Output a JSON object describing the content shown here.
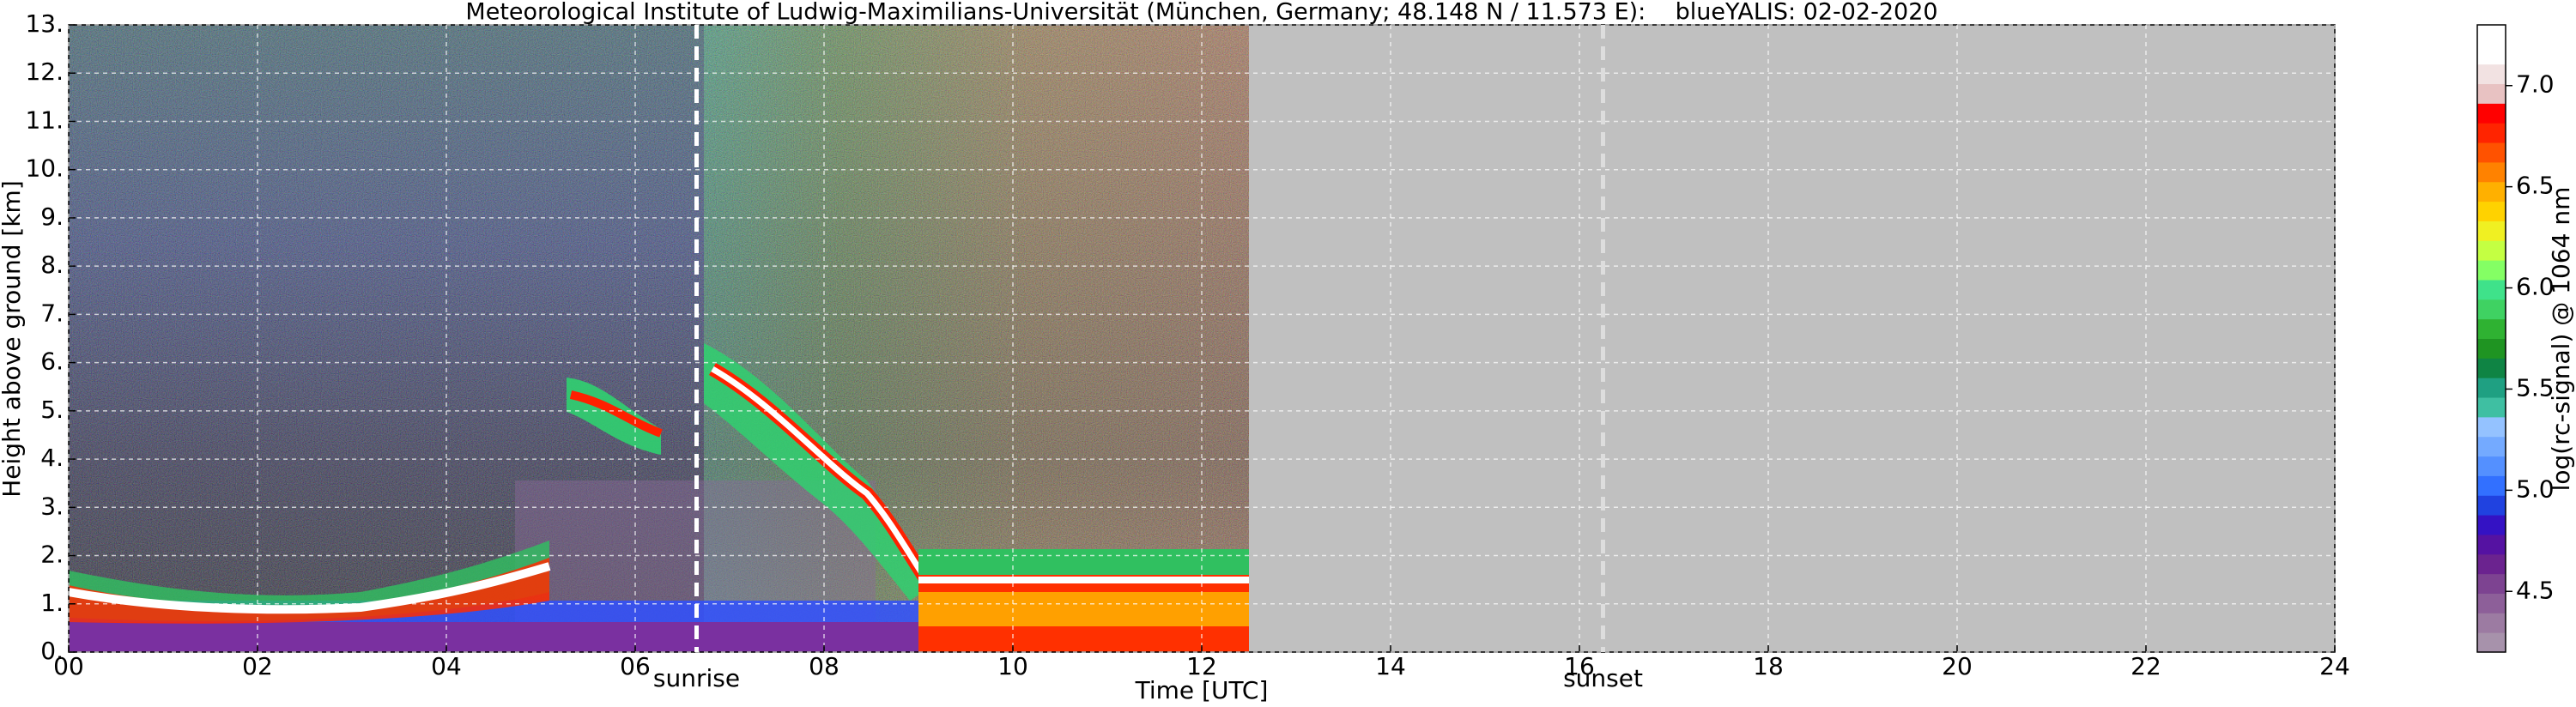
{
  "chart_data": {
    "type": "heatmap",
    "title": "Meteorological Institute of Ludwig-Maximilians-Universität (München, Germany; 48.148 N / 11.573 E):    blueYALIS: 02-02-2020",
    "x_label": "Time [UTC]",
    "y_label": "Height above ground [km]",
    "xlim": [
      0,
      24
    ],
    "xticks": [
      {
        "value": 0,
        "label": "00"
      },
      {
        "value": 2,
        "label": "02"
      },
      {
        "value": 4,
        "label": "04"
      },
      {
        "value": 6,
        "label": "06"
      },
      {
        "value": 8,
        "label": "08"
      },
      10,
      12,
      14,
      16,
      18,
      20,
      22,
      24
    ],
    "ylim": [
      0,
      13
    ],
    "yticks": [
      {
        "value": 0,
        "label": "0."
      },
      {
        "value": 1,
        "label": "1."
      },
      {
        "value": 2,
        "label": "2."
      },
      {
        "value": 3,
        "label": "3."
      },
      {
        "value": 4,
        "label": "4."
      },
      {
        "value": 5,
        "label": "5."
      },
      {
        "value": 6,
        "label": "6."
      },
      {
        "value": 7,
        "label": "7."
      },
      {
        "value": 8,
        "label": "8."
      },
      {
        "value": 9,
        "label": "9."
      },
      {
        "value": 10,
        "label": "10."
      },
      {
        "value": 11,
        "label": "11."
      },
      {
        "value": 12,
        "label": "12."
      },
      {
        "value": 13,
        "label": "13."
      }
    ],
    "grid": true,
    "annotations": [
      {
        "text": "sunrise",
        "x": 6.65,
        "color": "#ffffff"
      },
      {
        "text": "sunset",
        "x": 16.25,
        "color": "#dddddd"
      }
    ],
    "colorbar": {
      "label": "log(rc-signal) @ 1064 nm",
      "lim": [
        4.2,
        7.3
      ],
      "ticks": [
        4.5,
        {
          "value": 5,
          "label": "5.0"
        },
        5.5,
        {
          "value": 6,
          "label": "6.0"
        },
        6.5,
        {
          "value": 7,
          "label": "7.0"
        }
      ],
      "colors": [
        "#a792ab",
        "#9c7ba2",
        "#8d5f99",
        "#7d4391",
        "#6b238f",
        "#5512a2",
        "#3412c4",
        "#2042e0",
        "#3270ff",
        "#5490ff",
        "#74aaff",
        "#94c2ff",
        "#3fbfa2",
        "#1fa082",
        "#0f8444",
        "#1f9422",
        "#2fb232",
        "#3fd262",
        "#3fe28a",
        "#84ff64",
        "#c4ff42",
        "#f0f022",
        "#ffd200",
        "#ffb000",
        "#ff8200",
        "#ff5200",
        "#ff2400",
        "#ff0000",
        "#e8c2c2",
        "#f2e2e2",
        "#ffffff",
        "#ffffff"
      ]
    }
  }
}
